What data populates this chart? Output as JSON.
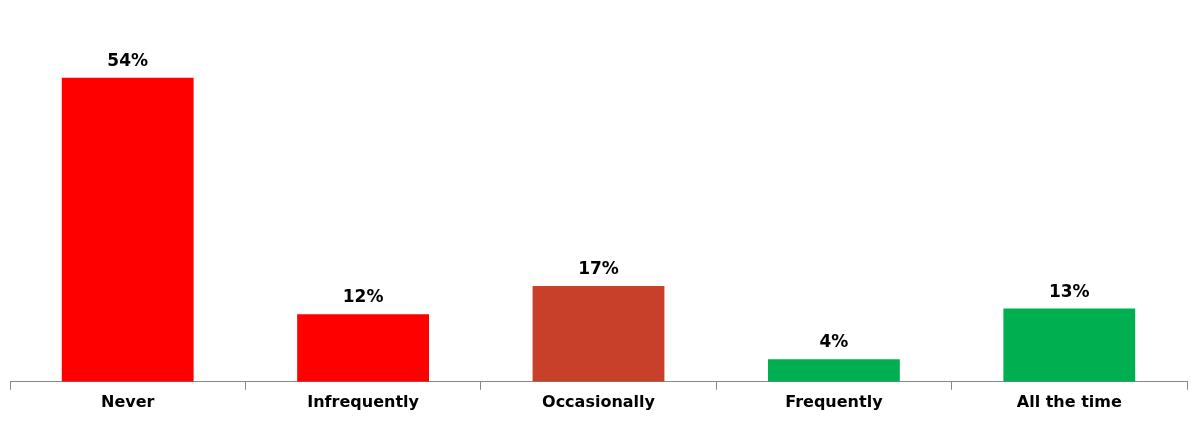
{
  "chart_data": {
    "type": "bar",
    "categories": [
      "Never",
      "Infrequently",
      "Occasionally",
      "Frequently",
      "All the time"
    ],
    "values": [
      54,
      12,
      17,
      4,
      13
    ],
    "colors": [
      "#ff0000",
      "#ff0000",
      "#c8402a",
      "#00b050",
      "#00b050"
    ],
    "value_labels": [
      "54%",
      "12%",
      "17%",
      "4%",
      "13%"
    ],
    "grid": false,
    "legend": false
  }
}
